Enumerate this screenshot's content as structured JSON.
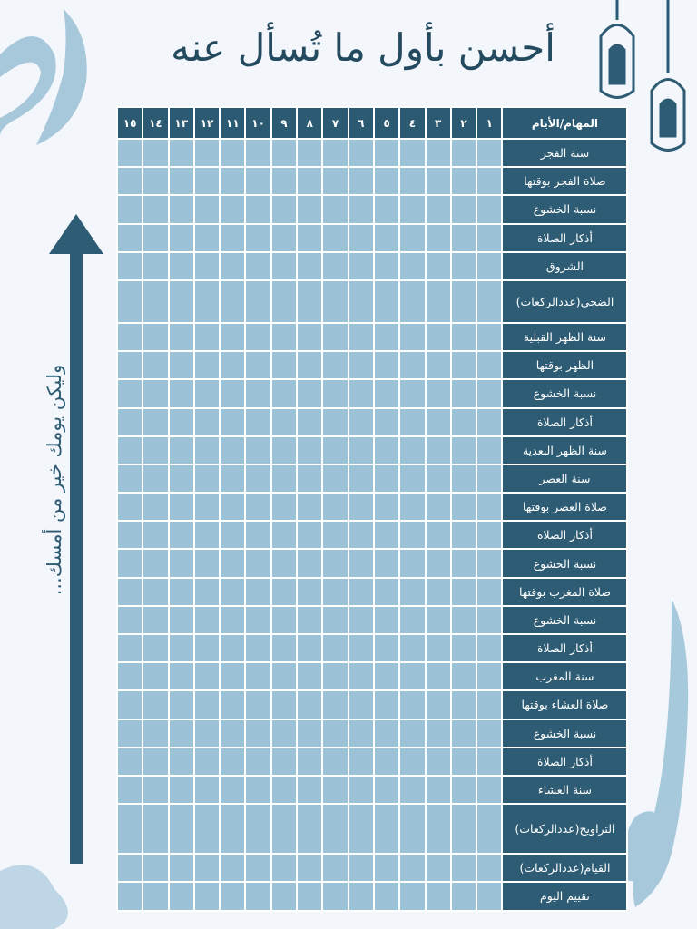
{
  "title": "أحسن بأول ما تُسأل عنه",
  "side_text": "وليكن يومك خير من أمسك...",
  "table": {
    "header": [
      "المهام/الأيام",
      "١",
      "٢",
      "٣",
      "٤",
      "٥",
      "٦",
      "٧",
      "٨",
      "٩",
      "١٠",
      "١١",
      "١٢",
      "١٣",
      "١٤",
      "١٥"
    ],
    "rows": [
      "سنة الفجر",
      "صلاة الفجر بوقتها",
      "نسبة الخشوع",
      "أذكار الصلاة",
      "الشروق",
      "الضحى(عددالركعات)",
      "سنة الظهر القبلية",
      "الظهر بوقتها",
      "نسبة الخشوع",
      "أذكار الصلاة",
      "سنة الظهر البعدية",
      "سنة العصر",
      "صلاة العصر بوقتها",
      "أذكار الصلاة",
      "نسبة الخشوع",
      "صلاة المغرب بوقتها",
      "نسبة الخشوع",
      "أذكار الصلاة",
      "سنة المغرب",
      "صلاة العشاء بوقتها",
      "نسبة الخشوع",
      "أذكار الصلاة",
      "سنة العشاء",
      "التراويح(عددالركعات)",
      "القيام(عددالركعات)",
      "تقييم اليوم"
    ]
  }
}
